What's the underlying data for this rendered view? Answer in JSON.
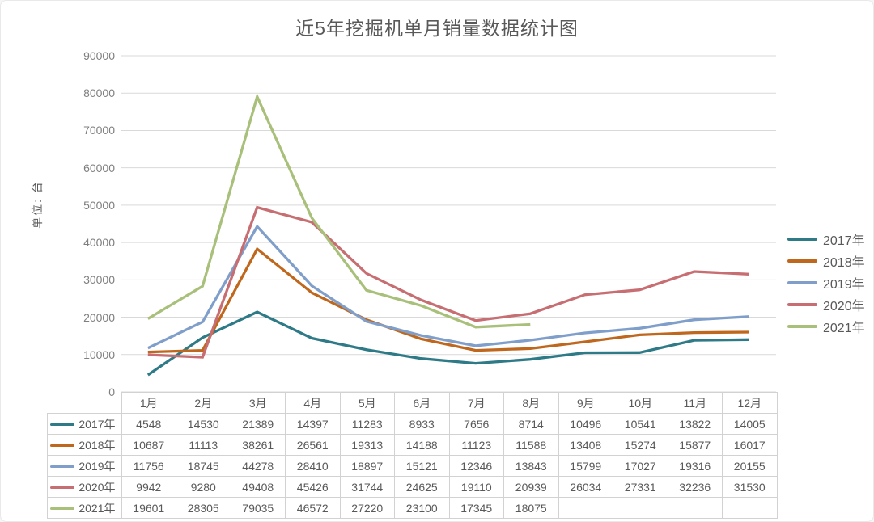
{
  "card": {
    "background": "#ffffff",
    "border_color": "#e9e9e9"
  },
  "style": {
    "grid_color": "#d9d9d9",
    "tick_text_color": "#7f7f7f",
    "title_color": "#595959",
    "axis_title_color": "#595959",
    "legend_text_color": "#595959",
    "table_text_color": "#595959",
    "table_border_color": "#d2d2d2"
  },
  "chart_data": {
    "type": "line",
    "title": "近5年挖掘机单月销量数据统计图",
    "ylabel": "单位: 台",
    "xlabel": "",
    "categories": [
      "1月",
      "2月",
      "3月",
      "4月",
      "5月",
      "6月",
      "7月",
      "8月",
      "9月",
      "10月",
      "11月",
      "12月"
    ],
    "ylim": [
      0,
      90000
    ],
    "ytick_step": 10000,
    "ytick_labels": [
      "90000",
      "80000",
      "70000",
      "60000",
      "50000",
      "40000",
      "30000",
      "20000",
      "10000",
      "0"
    ],
    "grid": "horizontal",
    "legend_position": "right",
    "series": [
      {
        "name": "2017年",
        "color": "#2e7a87",
        "values": [
          4548,
          14530,
          21389,
          14397,
          11283,
          8933,
          7656,
          8714,
          10496,
          10541,
          13822,
          14005
        ]
      },
      {
        "name": "2018年",
        "color": "#bf671d",
        "values": [
          10687,
          11113,
          38261,
          26561,
          19313,
          14188,
          11123,
          11588,
          13408,
          15274,
          15877,
          16017
        ]
      },
      {
        "name": "2019年",
        "color": "#7f9fca",
        "values": [
          11756,
          18745,
          44278,
          28410,
          18897,
          15121,
          12346,
          13843,
          15799,
          17027,
          19316,
          20155
        ]
      },
      {
        "name": "2020年",
        "color": "#c76e72",
        "values": [
          9942,
          9280,
          49408,
          45426,
          31744,
          24625,
          19110,
          20939,
          26034,
          27331,
          32236,
          31530
        ]
      },
      {
        "name": "2021年",
        "color": "#a8c07a",
        "values": [
          19601,
          28305,
          79035,
          46572,
          27220,
          23100,
          17345,
          18075,
          null,
          null,
          null,
          null
        ]
      }
    ]
  }
}
